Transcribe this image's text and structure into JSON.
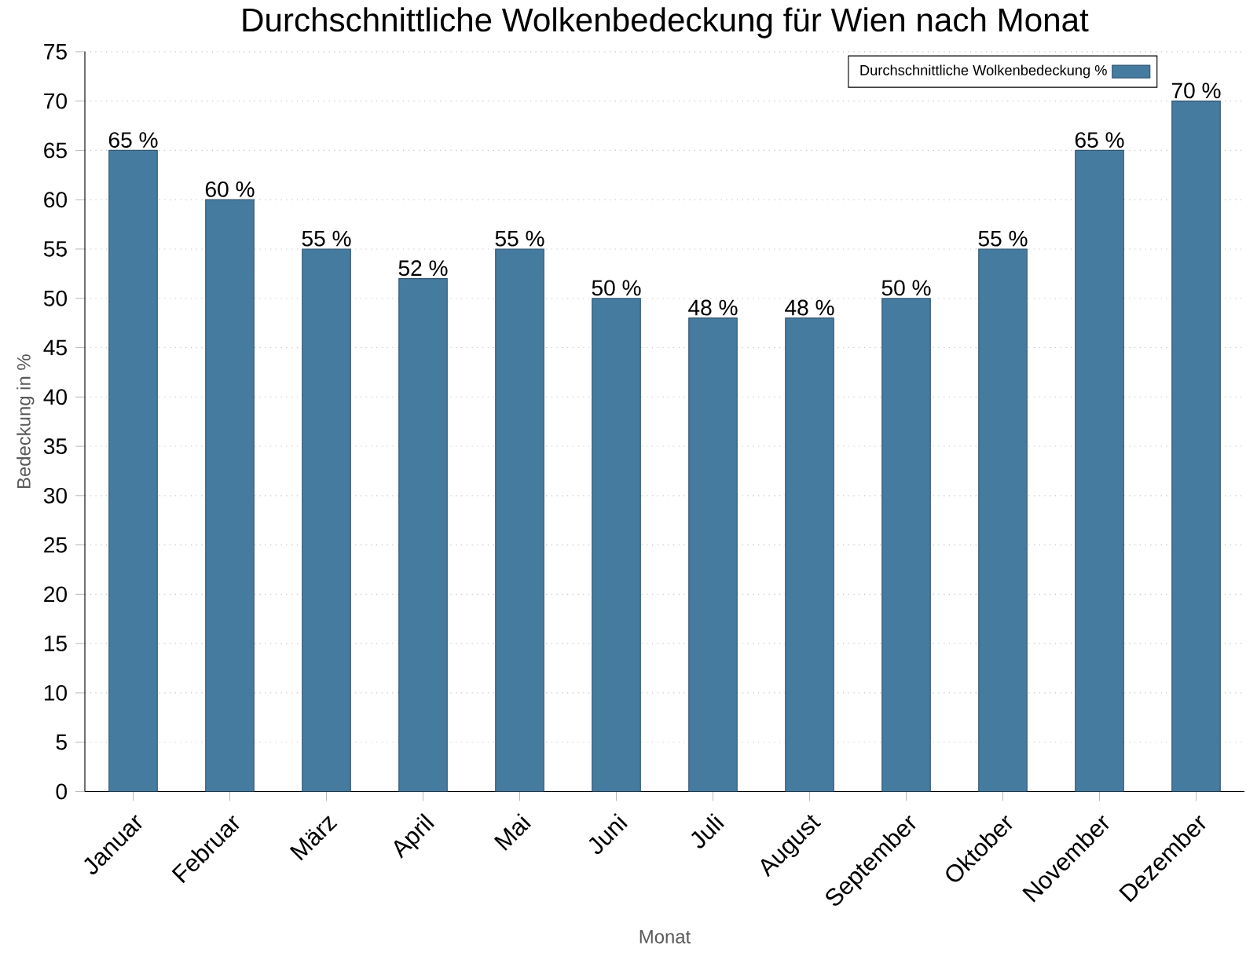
{
  "chart_data": {
    "type": "bar",
    "title": "Durchschnittliche Wolkenbedeckung für Wien nach Monat",
    "xlabel": "Monat",
    "ylabel": "Bedeckung in %",
    "categories": [
      "Januar",
      "Februar",
      "März",
      "April",
      "Mai",
      "Juni",
      "Juli",
      "August",
      "September",
      "Oktober",
      "November",
      "Dezember"
    ],
    "series": [
      {
        "name": "Durchschnittliche Wolkenbedeckung %",
        "color": "#467ba0",
        "values": [
          65,
          60,
          55,
          52,
          55,
          50,
          48,
          48,
          50,
          55,
          65,
          70
        ],
        "value_labels": [
          "65 %",
          "60 %",
          "55 %",
          "52 %",
          "55 %",
          "50 %",
          "48 %",
          "48 %",
          "50 %",
          "55 %",
          "65 %",
          "70 %"
        ]
      }
    ],
    "ylim": [
      0,
      75
    ],
    "yticks": [
      0,
      5,
      10,
      15,
      20,
      25,
      30,
      35,
      40,
      45,
      50,
      55,
      60,
      65,
      70,
      75
    ],
    "grid": "y",
    "legend": "top right"
  }
}
